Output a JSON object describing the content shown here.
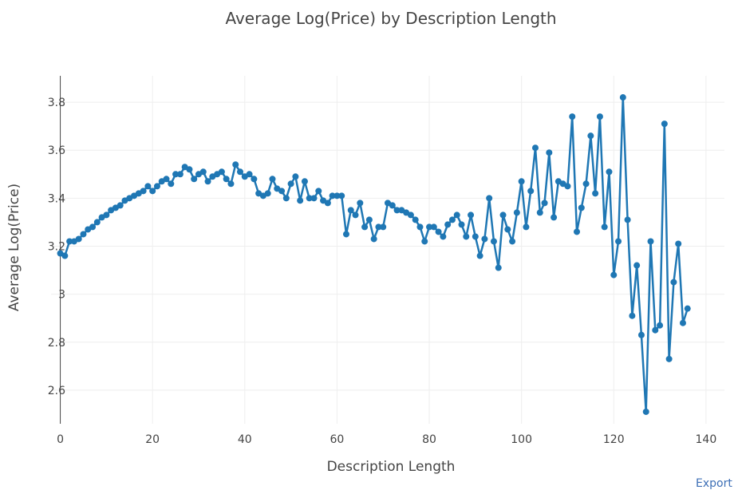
{
  "export_label": "Export",
  "chart_data": {
    "type": "line",
    "title": "Average Log(Price) by Description Length",
    "xlabel": "Description Length",
    "ylabel": "Average Log(Price)",
    "xlim": [
      -2,
      144
    ],
    "ylim": [
      2.46,
      3.91
    ],
    "x_ticks": [
      0,
      20,
      40,
      60,
      80,
      100,
      120,
      140
    ],
    "y_ticks": [
      2.6,
      2.8,
      3,
      3.2,
      3.4,
      3.6,
      3.8
    ],
    "grid": true,
    "legend": "none",
    "line_color": "#1f77b4",
    "series": [
      {
        "x": [
          0,
          1,
          2,
          3,
          4,
          5,
          6,
          7,
          8,
          9,
          10,
          11,
          12,
          13,
          14,
          15,
          16,
          17,
          18,
          19,
          20,
          21,
          22,
          23,
          24,
          25,
          26,
          27,
          28,
          29,
          30,
          31,
          32,
          33,
          34,
          35,
          36,
          37,
          38,
          39,
          40,
          41,
          42,
          43,
          44,
          45,
          46,
          47,
          48,
          49,
          50,
          51,
          52,
          53,
          54,
          55,
          56,
          57,
          58,
          59,
          60,
          61,
          62,
          63,
          64,
          65,
          66,
          67,
          68,
          69,
          70,
          71,
          72,
          73,
          74,
          75,
          76,
          77,
          78,
          79,
          80,
          81,
          82,
          83,
          84,
          85,
          86,
          87,
          88,
          89,
          90,
          91,
          92,
          93,
          94,
          95,
          96,
          97,
          98,
          99,
          100,
          101,
          102,
          103,
          104,
          105,
          106,
          107,
          108,
          109,
          110,
          111,
          112,
          113,
          114,
          115,
          116,
          117,
          118,
          119,
          120,
          121,
          122,
          123,
          124,
          125,
          126,
          127,
          128,
          129,
          130,
          131,
          132,
          133,
          134,
          135,
          136
        ],
        "y": [
          3.17,
          3.16,
          3.22,
          3.22,
          3.23,
          3.25,
          3.27,
          3.28,
          3.3,
          3.32,
          3.33,
          3.35,
          3.36,
          3.37,
          3.39,
          3.4,
          3.41,
          3.42,
          3.43,
          3.45,
          3.43,
          3.45,
          3.47,
          3.48,
          3.46,
          3.5,
          3.5,
          3.53,
          3.52,
          3.48,
          3.5,
          3.51,
          3.47,
          3.49,
          3.5,
          3.51,
          3.48,
          3.46,
          3.54,
          3.51,
          3.49,
          3.5,
          3.48,
          3.42,
          3.41,
          3.42,
          3.48,
          3.44,
          3.43,
          3.4,
          3.46,
          3.49,
          3.39,
          3.47,
          3.4,
          3.4,
          3.43,
          3.39,
          3.38,
          3.41,
          3.41,
          3.41,
          3.25,
          3.35,
          3.33,
          3.38,
          3.28,
          3.31,
          3.23,
          3.28,
          3.28,
          3.38,
          3.37,
          3.35,
          3.35,
          3.34,
          3.33,
          3.31,
          3.28,
          3.22,
          3.28,
          3.28,
          3.26,
          3.24,
          3.29,
          3.31,
          3.33,
          3.29,
          3.24,
          3.33,
          3.24,
          3.16,
          3.23,
          3.4,
          3.22,
          3.11,
          3.33,
          3.27,
          3.22,
          3.34,
          3.47,
          3.28,
          3.43,
          3.61,
          3.34,
          3.38,
          3.59,
          3.32,
          3.47,
          3.46,
          3.45,
          3.74,
          3.26,
          3.36,
          3.46,
          3.66,
          3.42,
          3.74,
          3.28,
          3.51,
          3.08,
          3.22,
          3.82,
          3.31,
          2.91,
          3.12,
          2.83,
          2.51,
          3.22,
          2.85,
          2.87,
          3.71,
          2.73,
          3.05,
          3.21,
          2.88,
          2.94
        ]
      }
    ]
  }
}
